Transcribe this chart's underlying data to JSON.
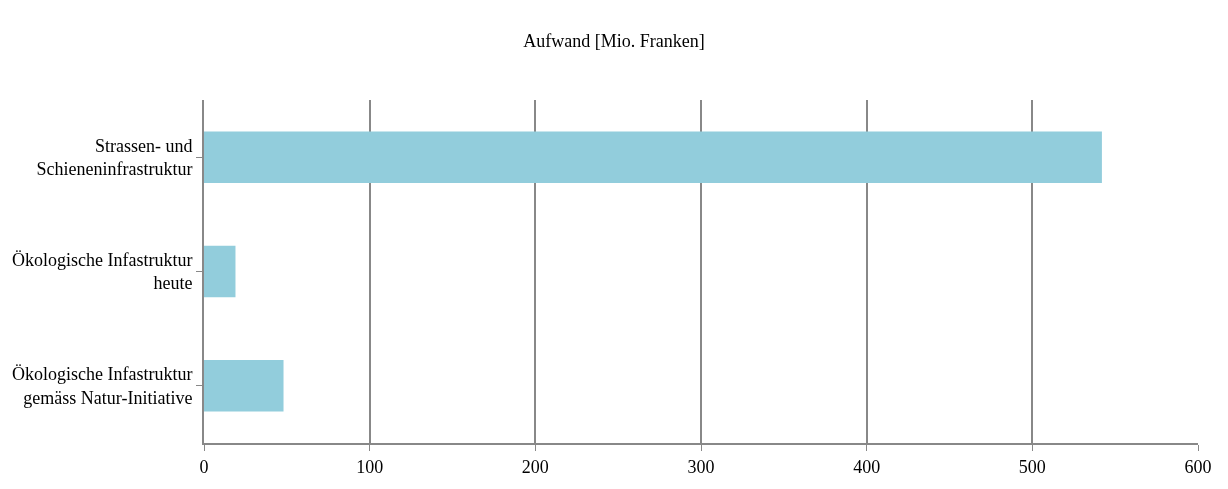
{
  "chart_data": {
    "type": "bar",
    "orientation": "horizontal",
    "title": "Aufwand [Mio. Franken]",
    "categories": [
      "Strassen- und Schieneninfrastruktur",
      "Ökologische Infastruktur heute",
      "Ökologische Infastruktur gemäss Natur-Initiative"
    ],
    "values": [
      542,
      19,
      48
    ],
    "color": "#92cddc",
    "xlim": [
      0,
      600
    ],
    "xticks": [
      0,
      100,
      200,
      300,
      400,
      500,
      600
    ],
    "grid": "x",
    "legend": false
  }
}
